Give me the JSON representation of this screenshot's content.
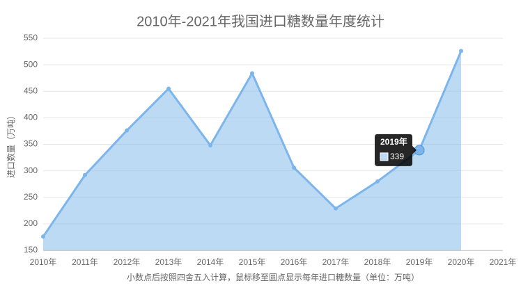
{
  "chart_data": {
    "type": "area",
    "title": "2010年-2021年我国进口糖数量年度统计",
    "y_label": "进口数量（万吨）",
    "x_label": "小数点后按照四舍五入计算，鼠标移至圆点显示每年进口糖数量（单位：万吨）",
    "categories": [
      "2010年",
      "2011年",
      "2012年",
      "2013年",
      "2014年",
      "2015年",
      "2016年",
      "2017年",
      "2018年",
      "2019年",
      "2020年",
      "2021年"
    ],
    "values": [
      176,
      292,
      376,
      455,
      348,
      484,
      306,
      229,
      280,
      339,
      526,
      null
    ],
    "color": "#7cb5ec",
    "ylim": [
      150,
      550
    ],
    "yticks": [
      150,
      200,
      250,
      300,
      350,
      400,
      450,
      500,
      550
    ],
    "grid": true,
    "tooltip_index": 9
  }
}
